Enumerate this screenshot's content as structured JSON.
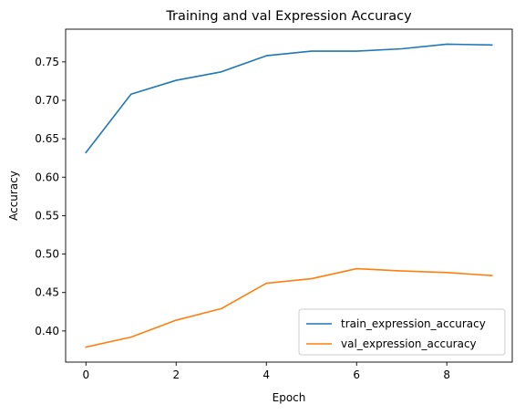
{
  "chart_data": {
    "type": "line",
    "title": "Training and val Expression Accuracy",
    "xlabel": "Epoch",
    "ylabel": "Accuracy",
    "x": [
      0,
      1,
      2,
      3,
      4,
      5,
      6,
      7,
      8,
      9
    ],
    "xlim": [
      -0.45,
      9.45
    ],
    "ylim": [
      0.3595,
      0.7925
    ],
    "xticks": [
      0,
      2,
      4,
      6,
      8
    ],
    "xtick_labels": [
      "0",
      "2",
      "4",
      "6",
      "8"
    ],
    "yticks": [
      0.4,
      0.45,
      0.5,
      0.55,
      0.6,
      0.65,
      0.7,
      0.75
    ],
    "ytick_labels": [
      "0.40",
      "0.45",
      "0.50",
      "0.55",
      "0.60",
      "0.65",
      "0.70",
      "0.75"
    ],
    "grid": false,
    "legend_position": "lower-right",
    "series": [
      {
        "name": "train_expression_accuracy",
        "color": "#1f77b4",
        "values": [
          0.632,
          0.708,
          0.726,
          0.737,
          0.758,
          0.764,
          0.764,
          0.767,
          0.773,
          0.772
        ]
      },
      {
        "name": "val_expression_accuracy",
        "color": "#ff7f0e",
        "values": [
          0.379,
          0.392,
          0.414,
          0.429,
          0.462,
          0.468,
          0.481,
          0.478,
          0.476,
          0.472
        ]
      }
    ]
  }
}
